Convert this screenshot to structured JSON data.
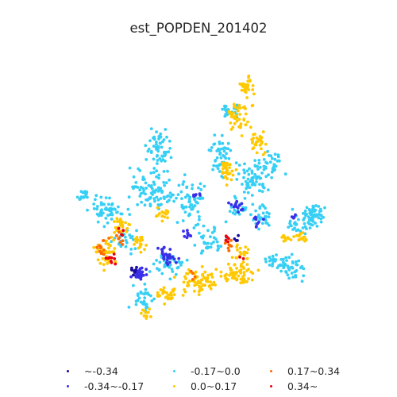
{
  "title": "est_POPDEN_201402",
  "chart_data": {
    "type": "scatter",
    "title": "est_POPDEN_201402",
    "legend_placement": "bottom",
    "classes": [
      {
        "label": "~-0.34",
        "color": "#1a0a9e"
      },
      {
        "label": "-0.34~-0.17",
        "color": "#3a2fe8"
      },
      {
        "label": "-0.17~0.0",
        "color": "#36cff5"
      },
      {
        "label": "0.0~0.17",
        "color": "#ffc800"
      },
      {
        "label": "0.17~0.34",
        "color": "#ff6a00"
      },
      {
        "label": "0.34~",
        "color": "#e8000b"
      }
    ],
    "grid": false,
    "axes_visible": false
  }
}
